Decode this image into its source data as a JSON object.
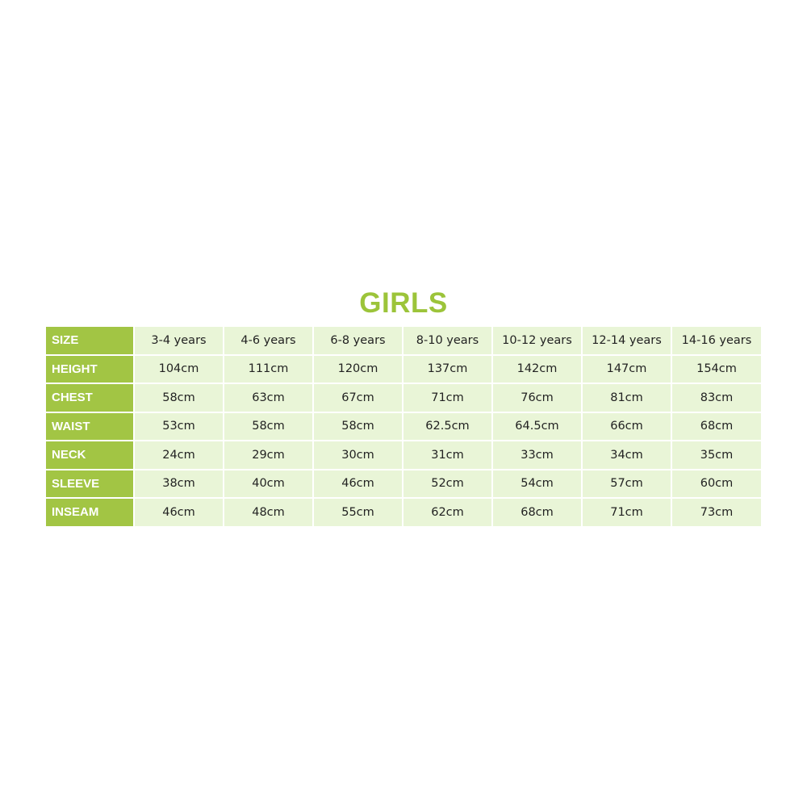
{
  "title": "GIRLS",
  "colors": {
    "accent": "#a2c544",
    "cell_bg": "#e9f5d7",
    "title": "#9cc43a"
  },
  "rows": [
    {
      "label": "SIZE",
      "values": [
        "3-4 years",
        "4-6 years",
        "6-8 years",
        "8-10 years",
        "10-12 years",
        "12-14 years",
        "14-16 years"
      ]
    },
    {
      "label": "HEIGHT",
      "values": [
        "104cm",
        "111cm",
        "120cm",
        "137cm",
        "142cm",
        "147cm",
        "154cm"
      ]
    },
    {
      "label": "CHEST",
      "values": [
        "58cm",
        "63cm",
        "67cm",
        "71cm",
        "76cm",
        "81cm",
        "83cm"
      ]
    },
    {
      "label": "WAIST",
      "values": [
        "53cm",
        "58cm",
        "58cm",
        "62.5cm",
        "64.5cm",
        "66cm",
        "68cm"
      ]
    },
    {
      "label": "NECK",
      "values": [
        "24cm",
        "29cm",
        "30cm",
        "31cm",
        "33cm",
        "34cm",
        "35cm"
      ]
    },
    {
      "label": "SLEEVE",
      "values": [
        "38cm",
        "40cm",
        "46cm",
        "52cm",
        "54cm",
        "57cm",
        "60cm"
      ]
    },
    {
      "label": "INSEAM",
      "values": [
        "46cm",
        "48cm",
        "55cm",
        "62cm",
        "68cm",
        "71cm",
        "73cm"
      ]
    }
  ]
}
